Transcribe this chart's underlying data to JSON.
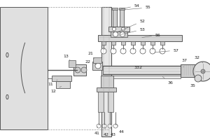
{
  "bg_color": "#ffffff",
  "line_color": "#555555",
  "lw": 0.6,
  "fig_w": 3.0,
  "fig_h": 2.0,
  "dpi": 100
}
